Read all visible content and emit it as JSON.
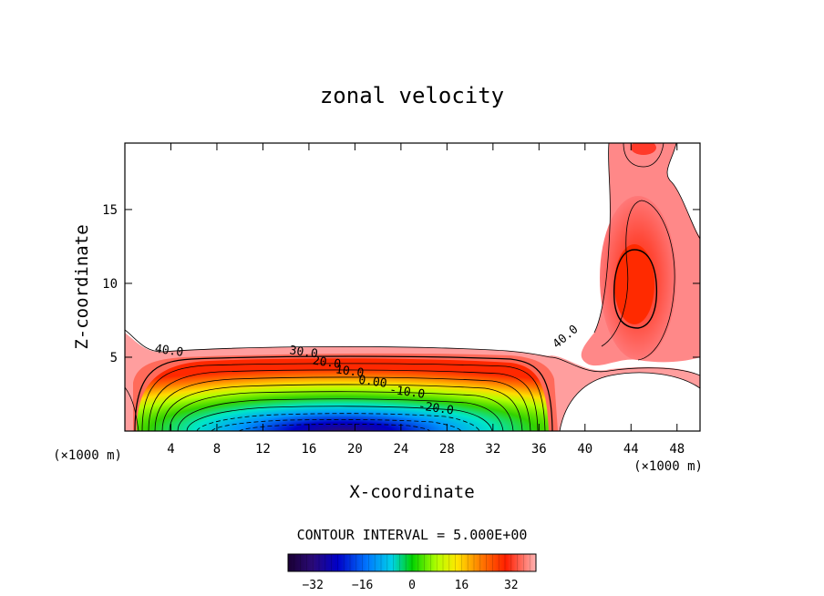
{
  "chart_data": {
    "type": "contour",
    "title": "zonal velocity",
    "xlabel": "X-coordinate",
    "ylabel": "Z-coordinate",
    "x_unit": "(×1000 m)",
    "y_unit": "(×1000 m)",
    "xlim": [
      0,
      50
    ],
    "ylim": [
      0,
      19.5
    ],
    "x_ticks": [
      4,
      8,
      12,
      16,
      20,
      24,
      28,
      32,
      36,
      40,
      44,
      48
    ],
    "y_ticks": [
      5,
      10,
      15
    ],
    "contour_interval_text": "CONTOUR INTERVAL = 5.000E+00",
    "contour_interval": 5.0,
    "contour_labels": [
      {
        "text": "40.0",
        "x": 3.8,
        "z": 5.2
      },
      {
        "text": "30.0",
        "x": 15.5,
        "z": 5.1
      },
      {
        "text": "20.0",
        "x": 17.5,
        "z": 4.4
      },
      {
        "text": "10.0",
        "x": 19.5,
        "z": 3.8
      },
      {
        "text": "0.00",
        "x": 21.5,
        "z": 3.1
      },
      {
        "text": "-10.0",
        "x": 24.5,
        "z": 2.4
      },
      {
        "text": "-20.0",
        "x": 27,
        "z": 1.3
      },
      {
        "text": "40.0",
        "x": 38.5,
        "z": 6.2
      }
    ],
    "colorbar": {
      "ticks": [
        -32,
        -16,
        0,
        16,
        32
      ],
      "range": [
        -40,
        40
      ],
      "colors": [
        "#1a0033",
        "#2a0a78",
        "#0000c8",
        "#0064ff",
        "#00c8ff",
        "#00e6aa",
        "#00d200",
        "#8cff00",
        "#ffff00",
        "#ffb400",
        "#ff5a00",
        "#ff1e00",
        "#ff6464",
        "#ffaaaa"
      ]
    }
  }
}
